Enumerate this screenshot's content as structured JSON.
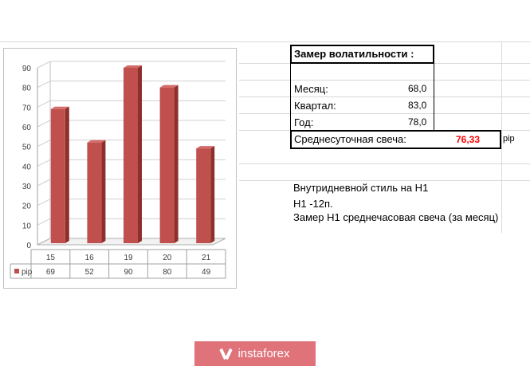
{
  "chart_data": {
    "type": "bar",
    "categories": [
      "15",
      "16",
      "19",
      "20",
      "21"
    ],
    "series": [
      {
        "name": "pip",
        "values": [
          69,
          52,
          90,
          80,
          49
        ]
      }
    ],
    "ylim": [
      0,
      90
    ],
    "yticks": [
      "0",
      "10",
      "20",
      "30",
      "40",
      "50",
      "60",
      "70",
      "80",
      "90"
    ],
    "legend": "table-bottom",
    "grid": true,
    "colors": {
      "bar": "#c0504d",
      "bar_dark": "#8e2f2c",
      "bar_light": "#d46b68"
    }
  },
  "volatility": {
    "title": "Замер  волатильности  :",
    "month_label": "Месяц:",
    "month_value": "68,0",
    "quarter_label": "Квартал:",
    "quarter_value": "83,0",
    "year_label": "Год:",
    "year_value": "78,0",
    "avg_label": "Среднесуточная свеча:",
    "avg_value": "76,33",
    "avg_unit": "pip",
    "avg_color": "#ff0000"
  },
  "notes": {
    "line1": "Внутридневной стиль на H1",
    "line2": "H1 -12п.",
    "line3": "Замер H1 среднечасовая свеча (за месяц)"
  },
  "logo": {
    "text": "instaforex",
    "icon": "instaforex-logo-icon",
    "color": "#e0737a"
  }
}
